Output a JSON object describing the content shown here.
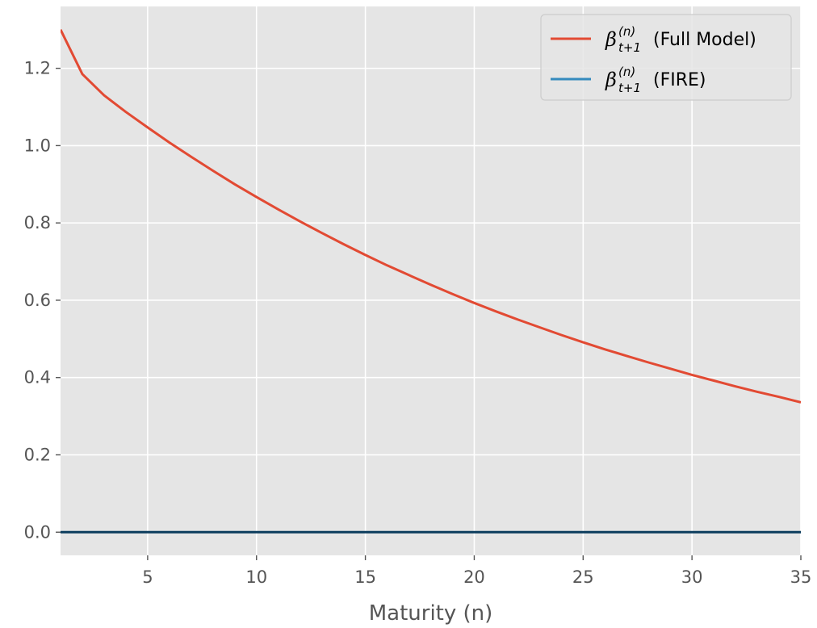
{
  "chart_data": {
    "type": "line",
    "title": "",
    "xlabel": "Maturity (n)",
    "ylabel": "",
    "xlim": [
      1,
      35
    ],
    "ylim": [
      -0.06,
      1.36
    ],
    "xticks": [
      5,
      10,
      15,
      20,
      25,
      30,
      35
    ],
    "yticks": [
      0.0,
      0.2,
      0.4,
      0.6,
      0.8,
      1.0,
      1.2
    ],
    "grid": true,
    "legend_position": "top-right",
    "series": [
      {
        "name": "β_{t+1}^{(n)} (Full Model)",
        "legend_main": "β",
        "legend_sup": "(n)",
        "legend_sub": "t+1",
        "legend_suffix": "(Full Model)",
        "color": "#E24A33",
        "x": [
          1,
          2,
          3,
          4,
          5,
          6,
          7,
          8,
          9,
          10,
          11,
          12,
          13,
          14,
          15,
          16,
          17,
          18,
          19,
          20,
          21,
          22,
          23,
          24,
          25,
          26,
          27,
          28,
          29,
          30,
          31,
          32,
          33,
          34,
          35
        ],
        "y": [
          1.3,
          1.185,
          1.13,
          1.087,
          1.047,
          1.008,
          0.971,
          0.935,
          0.9,
          0.867,
          0.835,
          0.804,
          0.774,
          0.745,
          0.717,
          0.69,
          0.665,
          0.64,
          0.616,
          0.593,
          0.571,
          0.55,
          0.53,
          0.51,
          0.491,
          0.473,
          0.456,
          0.439,
          0.423,
          0.407,
          0.392,
          0.377,
          0.363,
          0.35,
          0.336
        ]
      },
      {
        "name": "β_{t+1}^{(n)} (FIRE)",
        "legend_main": "β",
        "legend_sup": "(n)",
        "legend_sub": "t+1",
        "legend_suffix": "(FIRE)",
        "color": "#348ABD",
        "x": [
          1,
          35
        ],
        "y": [
          0.0,
          0.0
        ]
      }
    ]
  }
}
